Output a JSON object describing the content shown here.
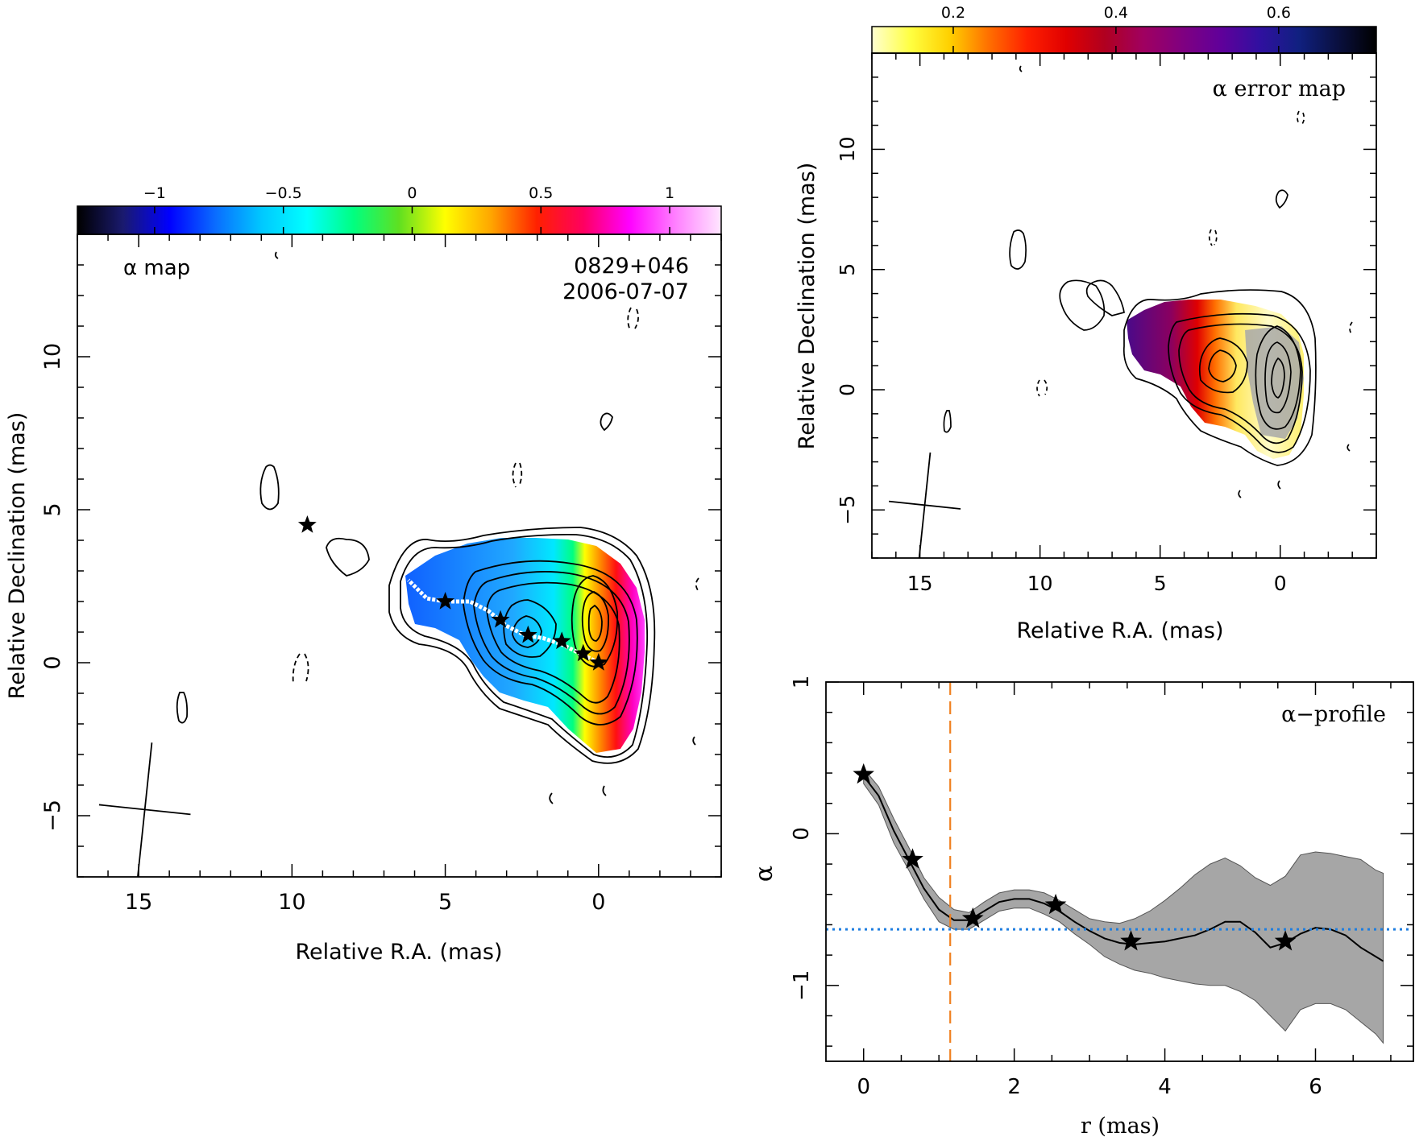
{
  "chart_data": [
    {
      "type": "heatmap",
      "id": "alpha-map",
      "title_label": "α map",
      "annotation_source": "0829+046",
      "annotation_date": "2006-07-07",
      "xlabel": "Relative R.A. (mas)",
      "ylabel": "Relative Declination (mas)",
      "xlim": [
        17,
        -4
      ],
      "ylim": [
        -7,
        14
      ],
      "x_ticks": [
        15,
        10,
        5,
        0
      ],
      "x_tick_labels": [
        "15",
        "10",
        "5",
        "0"
      ],
      "y_ticks": [
        -5,
        0,
        5,
        10
      ],
      "y_tick_labels": [
        "−5",
        "0",
        "5",
        "10"
      ],
      "colorbar": {
        "range": [
          -1.3,
          1.2
        ],
        "ticks": [
          -1,
          -0.5,
          0,
          0.5,
          1
        ],
        "tick_labels": [
          "−1",
          "−0.5",
          "0",
          "0.5",
          "1"
        ],
        "colors": [
          "#000000",
          "#1a1a6e",
          "#0000ff",
          "#0a6cff",
          "#00c8ff",
          "#00ffff",
          "#00ff80",
          "#60e020",
          "#ffff00",
          "#ffa500",
          "#ff2000",
          "#ff0060",
          "#ff00ff",
          "#ff80ff",
          "#ffe6ff"
        ]
      },
      "stars": [
        {
          "x": 0.0,
          "y": 0.0
        },
        {
          "x": 0.5,
          "y": 0.3
        },
        {
          "x": 1.2,
          "y": 0.7
        },
        {
          "x": 2.3,
          "y": 0.9
        },
        {
          "x": 3.2,
          "y": 1.4
        },
        {
          "x": 5.0,
          "y": 2.0
        },
        {
          "x": 9.5,
          "y": 4.5
        }
      ],
      "ridge_line": [
        {
          "x": 0.0,
          "y": 0.0
        },
        {
          "x": 0.6,
          "y": 0.3
        },
        {
          "x": 1.2,
          "y": 0.6
        },
        {
          "x": 1.8,
          "y": 0.8
        },
        {
          "x": 2.4,
          "y": 0.9
        },
        {
          "x": 3.0,
          "y": 1.2
        },
        {
          "x": 3.6,
          "y": 1.7
        },
        {
          "x": 4.2,
          "y": 2.0
        },
        {
          "x": 5.0,
          "y": 2.0
        },
        {
          "x": 5.6,
          "y": 2.1
        },
        {
          "x": 6.2,
          "y": 2.7
        }
      ],
      "beam": {
        "x": 14.8,
        "y": -4.8,
        "major": 2.2,
        "minor": 1.5
      }
    },
    {
      "type": "heatmap",
      "id": "alpha-error-map",
      "title_label": "α error map",
      "xlabel": "Relative R.A. (mas)",
      "ylabel": "Relative Declination (mas)",
      "xlim": [
        17,
        -4
      ],
      "ylim": [
        -7,
        14
      ],
      "x_ticks": [
        15,
        10,
        5,
        0
      ],
      "x_tick_labels": [
        "15",
        "10",
        "5",
        "0"
      ],
      "y_ticks": [
        -5,
        0,
        5,
        10
      ],
      "y_tick_labels": [
        "−5",
        "0",
        "5",
        "10"
      ],
      "colorbar": {
        "range": [
          0.1,
          0.72
        ],
        "ticks": [
          0.2,
          0.4,
          0.6
        ],
        "tick_labels": [
          "0.2",
          "0.4",
          "0.6"
        ],
        "colors": [
          "#ffffd0",
          "#ffff40",
          "#ffd000",
          "#ff7000",
          "#ff2000",
          "#e00000",
          "#b00020",
          "#a00060",
          "#800080",
          "#60009a",
          "#3010a0",
          "#102080",
          "#0a1040",
          "#000000"
        ]
      },
      "beam": {
        "x": 14.8,
        "y": -4.8,
        "major": 2.2,
        "minor": 1.5
      }
    },
    {
      "type": "line",
      "id": "alpha-profile",
      "title_label": "α−profile",
      "xlabel": "r (mas)",
      "ylabel": "α",
      "xlim": [
        -0.5,
        7.3
      ],
      "ylim": [
        -1.5,
        1.0
      ],
      "x_ticks": [
        0,
        2,
        4,
        6
      ],
      "x_tick_labels": [
        "0",
        "2",
        "4",
        "6"
      ],
      "y_ticks": [
        -1,
        0,
        1
      ],
      "y_tick_labels": [
        "−1",
        "0",
        "1"
      ],
      "x": [
        0,
        0.2,
        0.4,
        0.6,
        0.8,
        1.0,
        1.2,
        1.4,
        1.6,
        1.8,
        2.0,
        2.2,
        2.4,
        2.6,
        2.8,
        3.0,
        3.2,
        3.4,
        3.6,
        3.8,
        4.0,
        4.2,
        4.4,
        4.6,
        4.8,
        5.0,
        5.2,
        5.4,
        5.6,
        5.8,
        6.0,
        6.2,
        6.4,
        6.6,
        6.8,
        6.9
      ],
      "values": [
        0.38,
        0.25,
        0.02,
        -0.17,
        -0.36,
        -0.5,
        -0.57,
        -0.57,
        -0.51,
        -0.45,
        -0.43,
        -0.43,
        -0.46,
        -0.51,
        -0.58,
        -0.64,
        -0.69,
        -0.72,
        -0.73,
        -0.72,
        -0.71,
        -0.69,
        -0.67,
        -0.63,
        -0.58,
        -0.58,
        -0.65,
        -0.75,
        -0.72,
        -0.66,
        -0.62,
        -0.63,
        -0.67,
        -0.75,
        -0.81,
        -0.84
      ],
      "band_upper": [
        0.43,
        0.31,
        0.1,
        -0.09,
        -0.29,
        -0.42,
        -0.5,
        -0.52,
        -0.45,
        -0.39,
        -0.37,
        -0.37,
        -0.39,
        -0.44,
        -0.5,
        -0.56,
        -0.58,
        -0.59,
        -0.56,
        -0.51,
        -0.44,
        -0.36,
        -0.27,
        -0.2,
        -0.16,
        -0.21,
        -0.29,
        -0.34,
        -0.28,
        -0.14,
        -0.12,
        -0.13,
        -0.15,
        -0.17,
        -0.24,
        -0.26
      ],
      "band_lower": [
        0.33,
        0.19,
        -0.06,
        -0.24,
        -0.43,
        -0.58,
        -0.63,
        -0.63,
        -0.57,
        -0.51,
        -0.49,
        -0.49,
        -0.53,
        -0.58,
        -0.66,
        -0.73,
        -0.81,
        -0.86,
        -0.9,
        -0.92,
        -0.95,
        -0.97,
        -0.99,
        -1.0,
        -1.0,
        -1.04,
        -1.1,
        -1.2,
        -1.3,
        -1.16,
        -1.12,
        -1.12,
        -1.16,
        -1.24,
        -1.32,
        -1.38
      ],
      "stars": [
        {
          "x": 0.0,
          "y": 0.39
        },
        {
          "x": 0.65,
          "y": -0.17
        },
        {
          "x": 1.45,
          "y": -0.56
        },
        {
          "x": 2.55,
          "y": -0.47
        },
        {
          "x": 3.55,
          "y": -0.71
        },
        {
          "x": 5.6,
          "y": -0.71
        }
      ],
      "hline": -0.63,
      "vline": 1.15
    }
  ]
}
